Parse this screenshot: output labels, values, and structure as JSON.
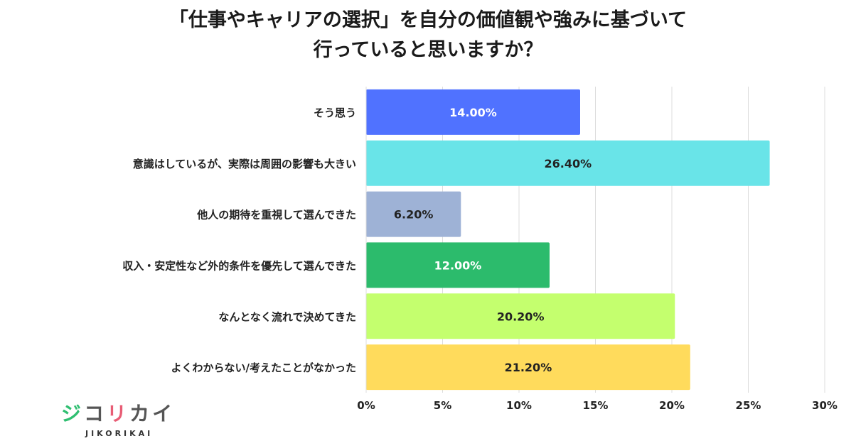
{
  "title_line1": "「仕事やキャリアの選択」を自分の価値観や強みに基づいて",
  "title_line2": "行っていると思いますか？",
  "logo": {
    "chars": [
      "ジ",
      "コ",
      "リ",
      "カ",
      "イ"
    ],
    "sub": "JIKORIKAI"
  },
  "chart_data": {
    "type": "bar",
    "orientation": "horizontal",
    "categories": [
      "そう思う",
      "意識はしているが、実際は周囲の影響も大きい",
      "他人の期待を重視して選んできた",
      "収入・安定性など外的条件を優先して選んできた",
      "なんとなく流れで決めてきた",
      "よくわからない/考えたことがなかった"
    ],
    "values": [
      14.0,
      26.4,
      6.2,
      12.0,
      20.2,
      21.2
    ],
    "value_labels": [
      "14.00%",
      "26.40%",
      "6.20%",
      "12.00%",
      "20.20%",
      "21.20%"
    ],
    "colors": [
      "#5072ff",
      "#69e4e8",
      "#9eb2d6",
      "#2cbb6c",
      "#c4ff6e",
      "#ffdb5c"
    ],
    "label_colors": [
      "#ffffff",
      "#222222",
      "#222222",
      "#ffffff",
      "#222222",
      "#222222"
    ],
    "xlim": [
      0,
      30
    ],
    "xticks": [
      "0%",
      "5%",
      "10%",
      "15%",
      "20%",
      "25%",
      "30%"
    ],
    "grid": true
  }
}
